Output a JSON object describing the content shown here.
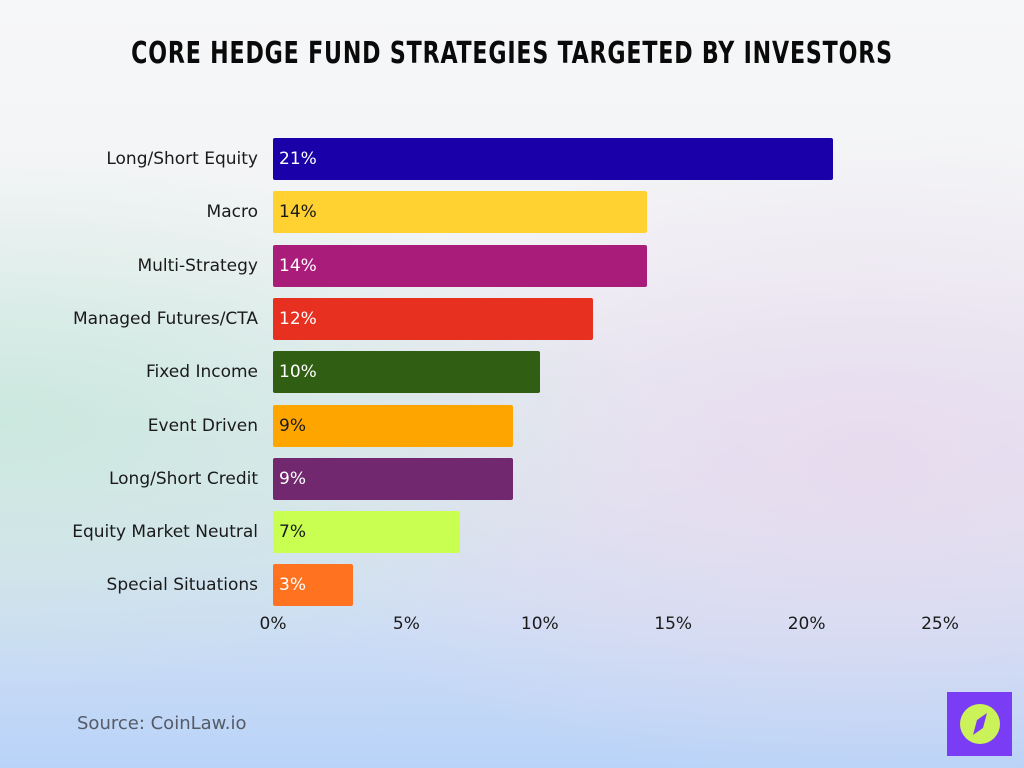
{
  "title": "Core Hedge Fund Strategies Targeted by Investors",
  "source": "Source: CoinLaw.io",
  "logo": {
    "icon": "compass-icon",
    "bg": "#7b3cf5",
    "fg": "#ccf25a"
  },
  "chart_data": {
    "type": "bar",
    "orientation": "horizontal",
    "title": "Core Hedge Fund Strategies Targeted by Investors",
    "xlabel": "",
    "ylabel": "",
    "xlim": [
      0,
      25
    ],
    "x_ticks": [
      "0%",
      "5%",
      "10%",
      "15%",
      "20%",
      "25%"
    ],
    "grid": false,
    "legend": null,
    "categories": [
      "Long/Short Equity",
      "Macro",
      "Multi-Strategy",
      "Managed Futures/CTA",
      "Fixed Income",
      "Event Driven",
      "Long/Short Credit",
      "Equity Market Neutral",
      "Special Situations"
    ],
    "values": [
      21,
      14,
      14,
      12,
      10,
      9,
      9,
      7,
      3
    ],
    "value_labels": [
      "21%",
      "14%",
      "14%",
      "12%",
      "10%",
      "9%",
      "9%",
      "7%",
      "3%"
    ],
    "colors": [
      "#1a00a8",
      "#ffd231",
      "#a91c7a",
      "#e83020",
      "#305e12",
      "#ffa500",
      "#72286e",
      "#c8ff50",
      "#ff7320"
    ],
    "label_colors": [
      "#ffffff",
      "#1a1a1a",
      "#ffffff",
      "#ffffff",
      "#ffffff",
      "#1a1a1a",
      "#ffffff",
      "#1a1a1a",
      "#ffffff"
    ],
    "source": "Source: CoinLaw.io"
  }
}
